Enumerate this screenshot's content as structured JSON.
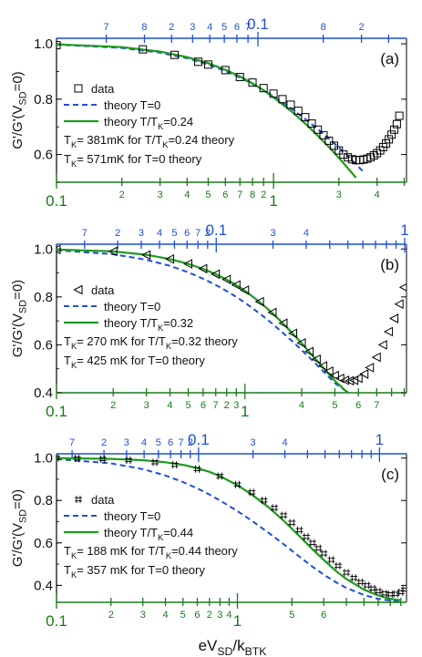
{
  "colors": {
    "data": "#000000",
    "theory_t0": "#1f4fd8",
    "theory_tk": "#1e9a1e",
    "bottom_axis": "#1a7a1a",
    "top_axis": "#1f4fd8",
    "frame": "#000000"
  },
  "figure": {
    "xlabel": "eV_SD/k_BT_K"
  },
  "chart_data": [
    {
      "type": "scatter",
      "panel_label": "(a)",
      "ylabel": "G'/G'(V_SD=0)",
      "ylim": [
        0.5,
        1.02
      ],
      "yticks": [
        "0.6",
        "0.8",
        "1.0"
      ],
      "xscale": "log",
      "xlim": [
        0.1,
        4.1
      ],
      "bottom_major_labels": [
        "0.1",
        "1"
      ],
      "bottom_minor_labels": [
        "2",
        "3",
        "4",
        "5",
        "6",
        "7",
        "8",
        "2",
        "3",
        "4"
      ],
      "top_major_labels": [
        "0.1",
        "1"
      ],
      "top_minor_labels": [
        "7",
        "8",
        "2",
        "3",
        "4",
        "5",
        "6",
        "7",
        "8",
        "2"
      ],
      "marker": "square",
      "legend": {
        "data": "data",
        "theory_t0": "theory T=0",
        "theory_tk": "theory T/T_K=0.24",
        "note1": "T_K= 381mK for T/T_K=0.24 theory",
        "note2": "T_K= 571mK for T=0 theory"
      },
      "series": [
        {
          "name": "data",
          "x": [
            0.1,
            0.25,
            0.35,
            0.45,
            0.5,
            0.6,
            0.7,
            0.8,
            0.9,
            1.0,
            1.1,
            1.2,
            1.3,
            1.4,
            1.5,
            1.6,
            1.7,
            1.8,
            1.9,
            2.0,
            2.1,
            2.2,
            2.3,
            2.4,
            2.5,
            2.6,
            2.7,
            2.8,
            2.9,
            3.0,
            3.1,
            3.2,
            3.3,
            3.4,
            3.5,
            3.6,
            3.7,
            3.8
          ],
          "y": [
            0.995,
            0.98,
            0.96,
            0.935,
            0.925,
            0.905,
            0.88,
            0.86,
            0.84,
            0.82,
            0.8,
            0.78,
            0.758,
            0.735,
            0.712,
            0.69,
            0.67,
            0.65,
            0.632,
            0.615,
            0.6,
            0.59,
            0.583,
            0.58,
            0.58,
            0.582,
            0.585,
            0.59,
            0.597,
            0.605,
            0.615,
            0.627,
            0.64,
            0.655,
            0.672,
            0.69,
            0.71,
            0.74
          ]
        },
        {
          "name": "theory T=0",
          "x": [
            0.1,
            0.2,
            0.3,
            0.4,
            0.5,
            0.6,
            0.7,
            0.8,
            0.9,
            1.0,
            1.2,
            1.4,
            1.6,
            1.8,
            2.0,
            2.2,
            2.4,
            2.6
          ],
          "y": [
            0.997,
            0.985,
            0.968,
            0.948,
            0.925,
            0.902,
            0.878,
            0.855,
            0.832,
            0.81,
            0.768,
            0.728,
            0.692,
            0.658,
            0.625,
            0.594,
            0.565,
            0.537
          ]
        },
        {
          "name": "theory T/T_K=0.24",
          "x": [
            0.1,
            0.2,
            0.3,
            0.4,
            0.5,
            0.6,
            0.7,
            0.8,
            0.9,
            1.0,
            1.2,
            1.4,
            1.6,
            1.8,
            2.0,
            2.2,
            2.4
          ],
          "y": [
            0.998,
            0.988,
            0.972,
            0.952,
            0.93,
            0.906,
            0.882,
            0.857,
            0.832,
            0.807,
            0.758,
            0.712,
            0.668,
            0.627,
            0.588,
            0.551,
            0.516
          ]
        }
      ]
    },
    {
      "type": "scatter",
      "panel_label": "(b)",
      "ylabel": "G'/G'(V_SD=0)",
      "ylim": [
        0.4,
        1.02
      ],
      "yticks": [
        "0.4",
        "0.6",
        "0.8",
        "1.0"
      ],
      "xscale": "log",
      "xlim": [
        0.1,
        7.2
      ],
      "bottom_major_labels": [
        "0.1",
        "1"
      ],
      "bottom_minor_labels": [
        "2",
        "3",
        "4",
        "5",
        "6",
        "7",
        "2",
        "3",
        "4",
        "5",
        "6",
        "7"
      ],
      "top_major_labels": [
        "0.1",
        "1"
      ],
      "top_minor_labels": [
        "7",
        "2",
        "3",
        "4",
        "5",
        "6",
        "7",
        "2",
        "3",
        "4"
      ],
      "marker": "triangle-left",
      "legend": {
        "data": "data",
        "theory_t0": "theory T=0",
        "theory_tk": "theory T/T_K=0.32",
        "note1": "T_K= 270 mK for T/T_K=0.32 theory",
        "note2": "T_K= 425 mK for T=0 theory"
      },
      "series": [
        {
          "name": "data",
          "x": [
            0.1,
            0.2,
            0.3,
            0.4,
            0.5,
            0.6,
            0.7,
            0.8,
            0.9,
            1.0,
            1.2,
            1.4,
            1.6,
            1.8,
            2.0,
            2.2,
            2.4,
            2.6,
            2.8,
            3.0,
            3.2,
            3.4,
            3.6,
            3.8,
            4.0,
            4.3,
            4.6,
            5.0,
            5.4,
            5.8,
            6.2,
            6.6,
            7.0
          ],
          "y": [
            0.998,
            0.99,
            0.975,
            0.958,
            0.938,
            0.918,
            0.895,
            0.873,
            0.85,
            0.828,
            0.78,
            0.735,
            0.69,
            0.648,
            0.608,
            0.572,
            0.54,
            0.512,
            0.49,
            0.472,
            0.46,
            0.452,
            0.45,
            0.452,
            0.46,
            0.478,
            0.505,
            0.548,
            0.6,
            0.655,
            0.71,
            0.77,
            0.84
          ]
        },
        {
          "name": "theory T=0",
          "x": [
            0.1,
            0.2,
            0.3,
            0.4,
            0.5,
            0.6,
            0.7,
            0.8,
            0.9,
            1.0,
            1.2,
            1.4,
            1.6,
            1.8,
            2.0,
            2.3,
            2.6,
            3.0,
            3.4,
            4.0
          ],
          "y": [
            0.995,
            0.978,
            0.955,
            0.93,
            0.903,
            0.876,
            0.85,
            0.824,
            0.8,
            0.776,
            0.73,
            0.688,
            0.648,
            0.612,
            0.578,
            0.532,
            0.49,
            0.44,
            0.41,
            0.38
          ]
        },
        {
          "name": "theory T/T_K=0.32",
          "x": [
            0.1,
            0.2,
            0.3,
            0.4,
            0.5,
            0.6,
            0.7,
            0.8,
            0.9,
            1.0,
            1.2,
            1.4,
            1.6,
            1.8,
            2.0,
            2.3,
            2.6,
            3.0,
            3.4,
            4.0
          ],
          "y": [
            0.998,
            0.99,
            0.976,
            0.958,
            0.938,
            0.917,
            0.895,
            0.872,
            0.849,
            0.826,
            0.778,
            0.732,
            0.688,
            0.646,
            0.606,
            0.552,
            0.505,
            0.45,
            0.41,
            0.37
          ]
        }
      ]
    },
    {
      "type": "scatter",
      "panel_label": "(c)",
      "ylabel": "G'/G'(V_SD=0)",
      "ylim": [
        0.32,
        1.02
      ],
      "yticks": [
        "0.4",
        "0.6",
        "0.8",
        "1.0"
      ],
      "xscale": "log",
      "xlim": [
        0.1,
        8.6
      ],
      "bottom_major_labels": [
        "0.1",
        "1"
      ],
      "bottom_minor_labels": [
        "2",
        "3",
        "4",
        "5",
        "6",
        "2",
        "3",
        "4",
        "5",
        "6"
      ],
      "top_major_labels": [
        "0.1",
        "1"
      ],
      "top_minor_labels": [
        "7",
        "2",
        "3",
        "4",
        "5",
        "6",
        "7",
        "2",
        "3",
        "4"
      ],
      "marker": "hash",
      "legend": {
        "data": "data",
        "theory_t0": "theory T=0",
        "theory_tk": "theory T/T_K=0.44",
        "note1": "T_K= 188 mK for  T/T_K=0.44 theory",
        "note2": "T_K= 357 mK for  T=0 theory"
      },
      "series": [
        {
          "name": "data",
          "x": [
            0.1,
            0.13,
            0.18,
            0.25,
            0.35,
            0.45,
            0.6,
            0.8,
            1.0,
            1.2,
            1.4,
            1.6,
            1.8,
            2.0,
            2.2,
            2.4,
            2.6,
            2.8,
            3.0,
            3.3,
            3.6,
            4.0,
            4.4,
            4.8,
            5.2,
            5.6,
            6.0,
            6.5,
            7.0,
            7.5,
            8.0,
            8.4
          ],
          "y": [
            1.0,
            0.998,
            0.995,
            0.99,
            0.98,
            0.968,
            0.948,
            0.915,
            0.875,
            0.838,
            0.8,
            0.765,
            0.73,
            0.695,
            0.66,
            0.628,
            0.6,
            0.575,
            0.55,
            0.52,
            0.492,
            0.46,
            0.435,
            0.415,
            0.4,
            0.385,
            0.372,
            0.362,
            0.358,
            0.36,
            0.368,
            0.38
          ]
        },
        {
          "name": "theory T=0",
          "x": [
            0.1,
            0.2,
            0.3,
            0.4,
            0.5,
            0.6,
            0.7,
            0.8,
            1.0,
            1.2,
            1.5,
            1.8,
            2.2,
            2.6,
            3.0,
            3.5,
            4.0,
            5.0,
            6.0,
            7.0,
            8.0
          ],
          "y": [
            0.995,
            0.975,
            0.948,
            0.918,
            0.887,
            0.857,
            0.828,
            0.8,
            0.75,
            0.705,
            0.645,
            0.594,
            0.535,
            0.488,
            0.45,
            0.415,
            0.388,
            0.355,
            0.336,
            0.328,
            0.325
          ]
        },
        {
          "name": "theory T/T_K=0.44",
          "x": [
            0.1,
            0.2,
            0.3,
            0.4,
            0.5,
            0.6,
            0.7,
            0.8,
            1.0,
            1.2,
            1.5,
            1.8,
            2.2,
            2.6,
            3.0,
            3.5,
            4.0,
            5.0,
            6.0,
            7.0,
            8.0
          ],
          "y": [
            1.0,
            0.996,
            0.99,
            0.98,
            0.968,
            0.952,
            0.935,
            0.915,
            0.872,
            0.828,
            0.765,
            0.705,
            0.632,
            0.57,
            0.52,
            0.468,
            0.43,
            0.38,
            0.352,
            0.336,
            0.33
          ]
        }
      ]
    }
  ]
}
